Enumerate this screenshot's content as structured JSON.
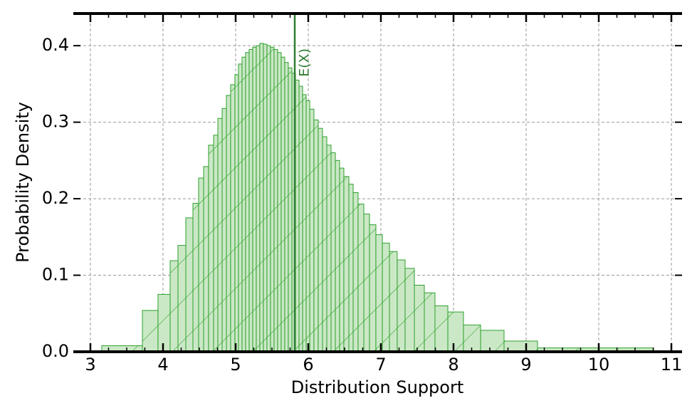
{
  "chart_data": {
    "type": "histogram",
    "xlabel": "Distribution Support",
    "ylabel": "Probability Density",
    "bins": [
      3.157,
      3.716,
      3.931,
      4.098,
      4.206,
      4.314,
      4.412,
      4.49,
      4.559,
      4.627,
      4.696,
      4.755,
      4.814,
      4.873,
      4.931,
      4.99,
      5.039,
      5.088,
      5.137,
      5.186,
      5.235,
      5.284,
      5.333,
      5.382,
      5.431,
      5.48,
      5.529,
      5.578,
      5.627,
      5.676,
      5.725,
      5.775,
      5.824,
      5.873,
      5.922,
      5.971,
      6.02,
      6.078,
      6.137,
      6.196,
      6.255,
      6.314,
      6.373,
      6.431,
      6.49,
      6.559,
      6.618,
      6.686,
      6.765,
      6.843,
      6.931,
      7.02,
      7.118,
      7.225,
      7.333,
      7.461,
      7.598,
      7.745,
      7.922,
      8.137,
      8.373,
      8.696,
      9.157,
      10.755
    ],
    "values": [
      0.008,
      0.054,
      0.075,
      0.119,
      0.139,
      0.175,
      0.194,
      0.227,
      0.242,
      0.27,
      0.283,
      0.305,
      0.318,
      0.335,
      0.349,
      0.362,
      0.376,
      0.385,
      0.391,
      0.395,
      0.398,
      0.4,
      0.403,
      0.402,
      0.4,
      0.398,
      0.395,
      0.391,
      0.385,
      0.378,
      0.371,
      0.364,
      0.355,
      0.347,
      0.336,
      0.328,
      0.317,
      0.303,
      0.292,
      0.281,
      0.27,
      0.26,
      0.25,
      0.24,
      0.229,
      0.219,
      0.208,
      0.193,
      0.18,
      0.166,
      0.153,
      0.142,
      0.131,
      0.12,
      0.109,
      0.087,
      0.077,
      0.06,
      0.052,
      0.035,
      0.028,
      0.014,
      0.005
    ],
    "color": "#2ca02c",
    "fill_color": "#cbe8c6",
    "mean_line": {
      "value": 5.814,
      "label": "E(X)",
      "color": "#2e7d32"
    },
    "xlim": [
      2.765,
      11.147
    ],
    "ylim": [
      0,
      0.442
    ],
    "xticks": [
      3,
      4,
      5,
      6,
      7,
      8,
      9,
      10,
      11
    ],
    "yticks": [
      {
        "value": 0,
        "label": "0.0"
      },
      0.1,
      0.2,
      0.3,
      0.4
    ],
    "grid": true
  }
}
